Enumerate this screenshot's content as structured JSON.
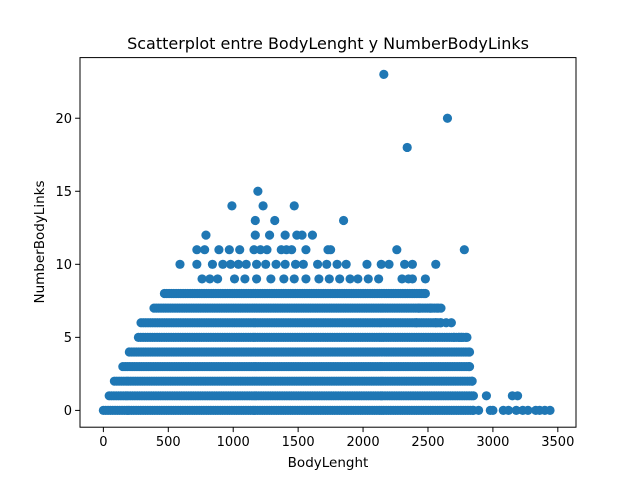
{
  "chart_data": {
    "type": "scatter",
    "title": "Scatterplot entre BodyLenght y NumberBodyLinks",
    "xlabel": "BodyLenght",
    "ylabel": "NumberBodyLinks",
    "xlim": [
      -180,
      3640
    ],
    "ylim": [
      -1.15,
      24.15
    ],
    "xticks": [
      0,
      500,
      1000,
      1500,
      2000,
      2500,
      3000,
      3500
    ],
    "yticks": [
      0,
      5,
      10,
      15,
      20
    ],
    "grid": false,
    "legend": "none",
    "marker_color": "#1f77b4",
    "dense_bands": [
      {
        "y": 0,
        "x_min": 0,
        "x_max": 2850
      },
      {
        "y": 1,
        "x_min": 45,
        "x_max": 2850
      },
      {
        "y": 2,
        "x_min": 85,
        "x_max": 2840
      },
      {
        "y": 3,
        "x_min": 150,
        "x_max": 2820
      },
      {
        "y": 4,
        "x_min": 200,
        "x_max": 2820
      },
      {
        "y": 5,
        "x_min": 270,
        "x_max": 2800
      },
      {
        "y": 6,
        "x_min": 290,
        "x_max": 2600
      },
      {
        "y": 7,
        "x_min": 390,
        "x_max": 2580
      },
      {
        "y": 8,
        "x_min": 470,
        "x_max": 2480
      }
    ],
    "sparse_points": [
      {
        "x": 2160,
        "y": 23
      },
      {
        "x": 2650,
        "y": 20
      },
      {
        "x": 2340,
        "y": 18
      },
      {
        "x": 1190,
        "y": 15
      },
      {
        "x": 990,
        "y": 14
      },
      {
        "x": 1230,
        "y": 14
      },
      {
        "x": 1470,
        "y": 14
      },
      {
        "x": 1170,
        "y": 13
      },
      {
        "x": 1320,
        "y": 13
      },
      {
        "x": 1850,
        "y": 13
      },
      {
        "x": 790,
        "y": 12
      },
      {
        "x": 1170,
        "y": 12
      },
      {
        "x": 1280,
        "y": 12
      },
      {
        "x": 1400,
        "y": 12
      },
      {
        "x": 1490,
        "y": 12
      },
      {
        "x": 1530,
        "y": 12
      },
      {
        "x": 1610,
        "y": 12
      },
      {
        "x": 720,
        "y": 11
      },
      {
        "x": 780,
        "y": 11
      },
      {
        "x": 890,
        "y": 11
      },
      {
        "x": 970,
        "y": 11
      },
      {
        "x": 1050,
        "y": 11
      },
      {
        "x": 1160,
        "y": 11
      },
      {
        "x": 1210,
        "y": 11
      },
      {
        "x": 1260,
        "y": 11
      },
      {
        "x": 1370,
        "y": 11
      },
      {
        "x": 1410,
        "y": 11
      },
      {
        "x": 1450,
        "y": 11
      },
      {
        "x": 1560,
        "y": 11
      },
      {
        "x": 1730,
        "y": 11
      },
      {
        "x": 1750,
        "y": 11
      },
      {
        "x": 2260,
        "y": 11
      },
      {
        "x": 2780,
        "y": 11
      },
      {
        "x": 590,
        "y": 10
      },
      {
        "x": 720,
        "y": 10
      },
      {
        "x": 840,
        "y": 10
      },
      {
        "x": 920,
        "y": 10
      },
      {
        "x": 980,
        "y": 10
      },
      {
        "x": 1040,
        "y": 10
      },
      {
        "x": 1100,
        "y": 10
      },
      {
        "x": 1180,
        "y": 10
      },
      {
        "x": 1250,
        "y": 10
      },
      {
        "x": 1330,
        "y": 10
      },
      {
        "x": 1400,
        "y": 10
      },
      {
        "x": 1480,
        "y": 10
      },
      {
        "x": 1540,
        "y": 10
      },
      {
        "x": 1650,
        "y": 10
      },
      {
        "x": 1720,
        "y": 10
      },
      {
        "x": 1800,
        "y": 10
      },
      {
        "x": 1870,
        "y": 10
      },
      {
        "x": 2030,
        "y": 10
      },
      {
        "x": 2140,
        "y": 10
      },
      {
        "x": 2200,
        "y": 10
      },
      {
        "x": 2320,
        "y": 10
      },
      {
        "x": 2380,
        "y": 10
      },
      {
        "x": 2560,
        "y": 10
      },
      {
        "x": 760,
        "y": 9
      },
      {
        "x": 820,
        "y": 9
      },
      {
        "x": 880,
        "y": 9
      },
      {
        "x": 1010,
        "y": 9
      },
      {
        "x": 1090,
        "y": 9
      },
      {
        "x": 1180,
        "y": 9
      },
      {
        "x": 1290,
        "y": 9
      },
      {
        "x": 1390,
        "y": 9
      },
      {
        "x": 1470,
        "y": 9
      },
      {
        "x": 1560,
        "y": 9
      },
      {
        "x": 1660,
        "y": 9
      },
      {
        "x": 1740,
        "y": 9
      },
      {
        "x": 1820,
        "y": 9
      },
      {
        "x": 1900,
        "y": 9
      },
      {
        "x": 1960,
        "y": 9
      },
      {
        "x": 2040,
        "y": 9
      },
      {
        "x": 2120,
        "y": 9
      },
      {
        "x": 2300,
        "y": 9
      },
      {
        "x": 2350,
        "y": 9
      },
      {
        "x": 2380,
        "y": 9
      },
      {
        "x": 2480,
        "y": 9
      },
      {
        "x": 2430,
        "y": 7
      },
      {
        "x": 2520,
        "y": 7
      },
      {
        "x": 2600,
        "y": 7
      },
      {
        "x": 2410,
        "y": 6
      },
      {
        "x": 2560,
        "y": 6
      },
      {
        "x": 2640,
        "y": 6
      },
      {
        "x": 2680,
        "y": 6
      },
      {
        "x": 2700,
        "y": 5
      },
      {
        "x": 2740,
        "y": 5
      },
      {
        "x": 2760,
        "y": 5
      },
      {
        "x": 2950,
        "y": 1
      },
      {
        "x": 3150,
        "y": 1
      },
      {
        "x": 3190,
        "y": 1
      },
      {
        "x": 2890,
        "y": 0
      },
      {
        "x": 2980,
        "y": 0
      },
      {
        "x": 3000,
        "y": 0
      },
      {
        "x": 3080,
        "y": 0
      },
      {
        "x": 3120,
        "y": 0
      },
      {
        "x": 3180,
        "y": 0
      },
      {
        "x": 3230,
        "y": 0
      },
      {
        "x": 3270,
        "y": 0
      },
      {
        "x": 3330,
        "y": 0
      },
      {
        "x": 3360,
        "y": 0
      },
      {
        "x": 3400,
        "y": 0
      },
      {
        "x": 3440,
        "y": 0
      }
    ]
  }
}
